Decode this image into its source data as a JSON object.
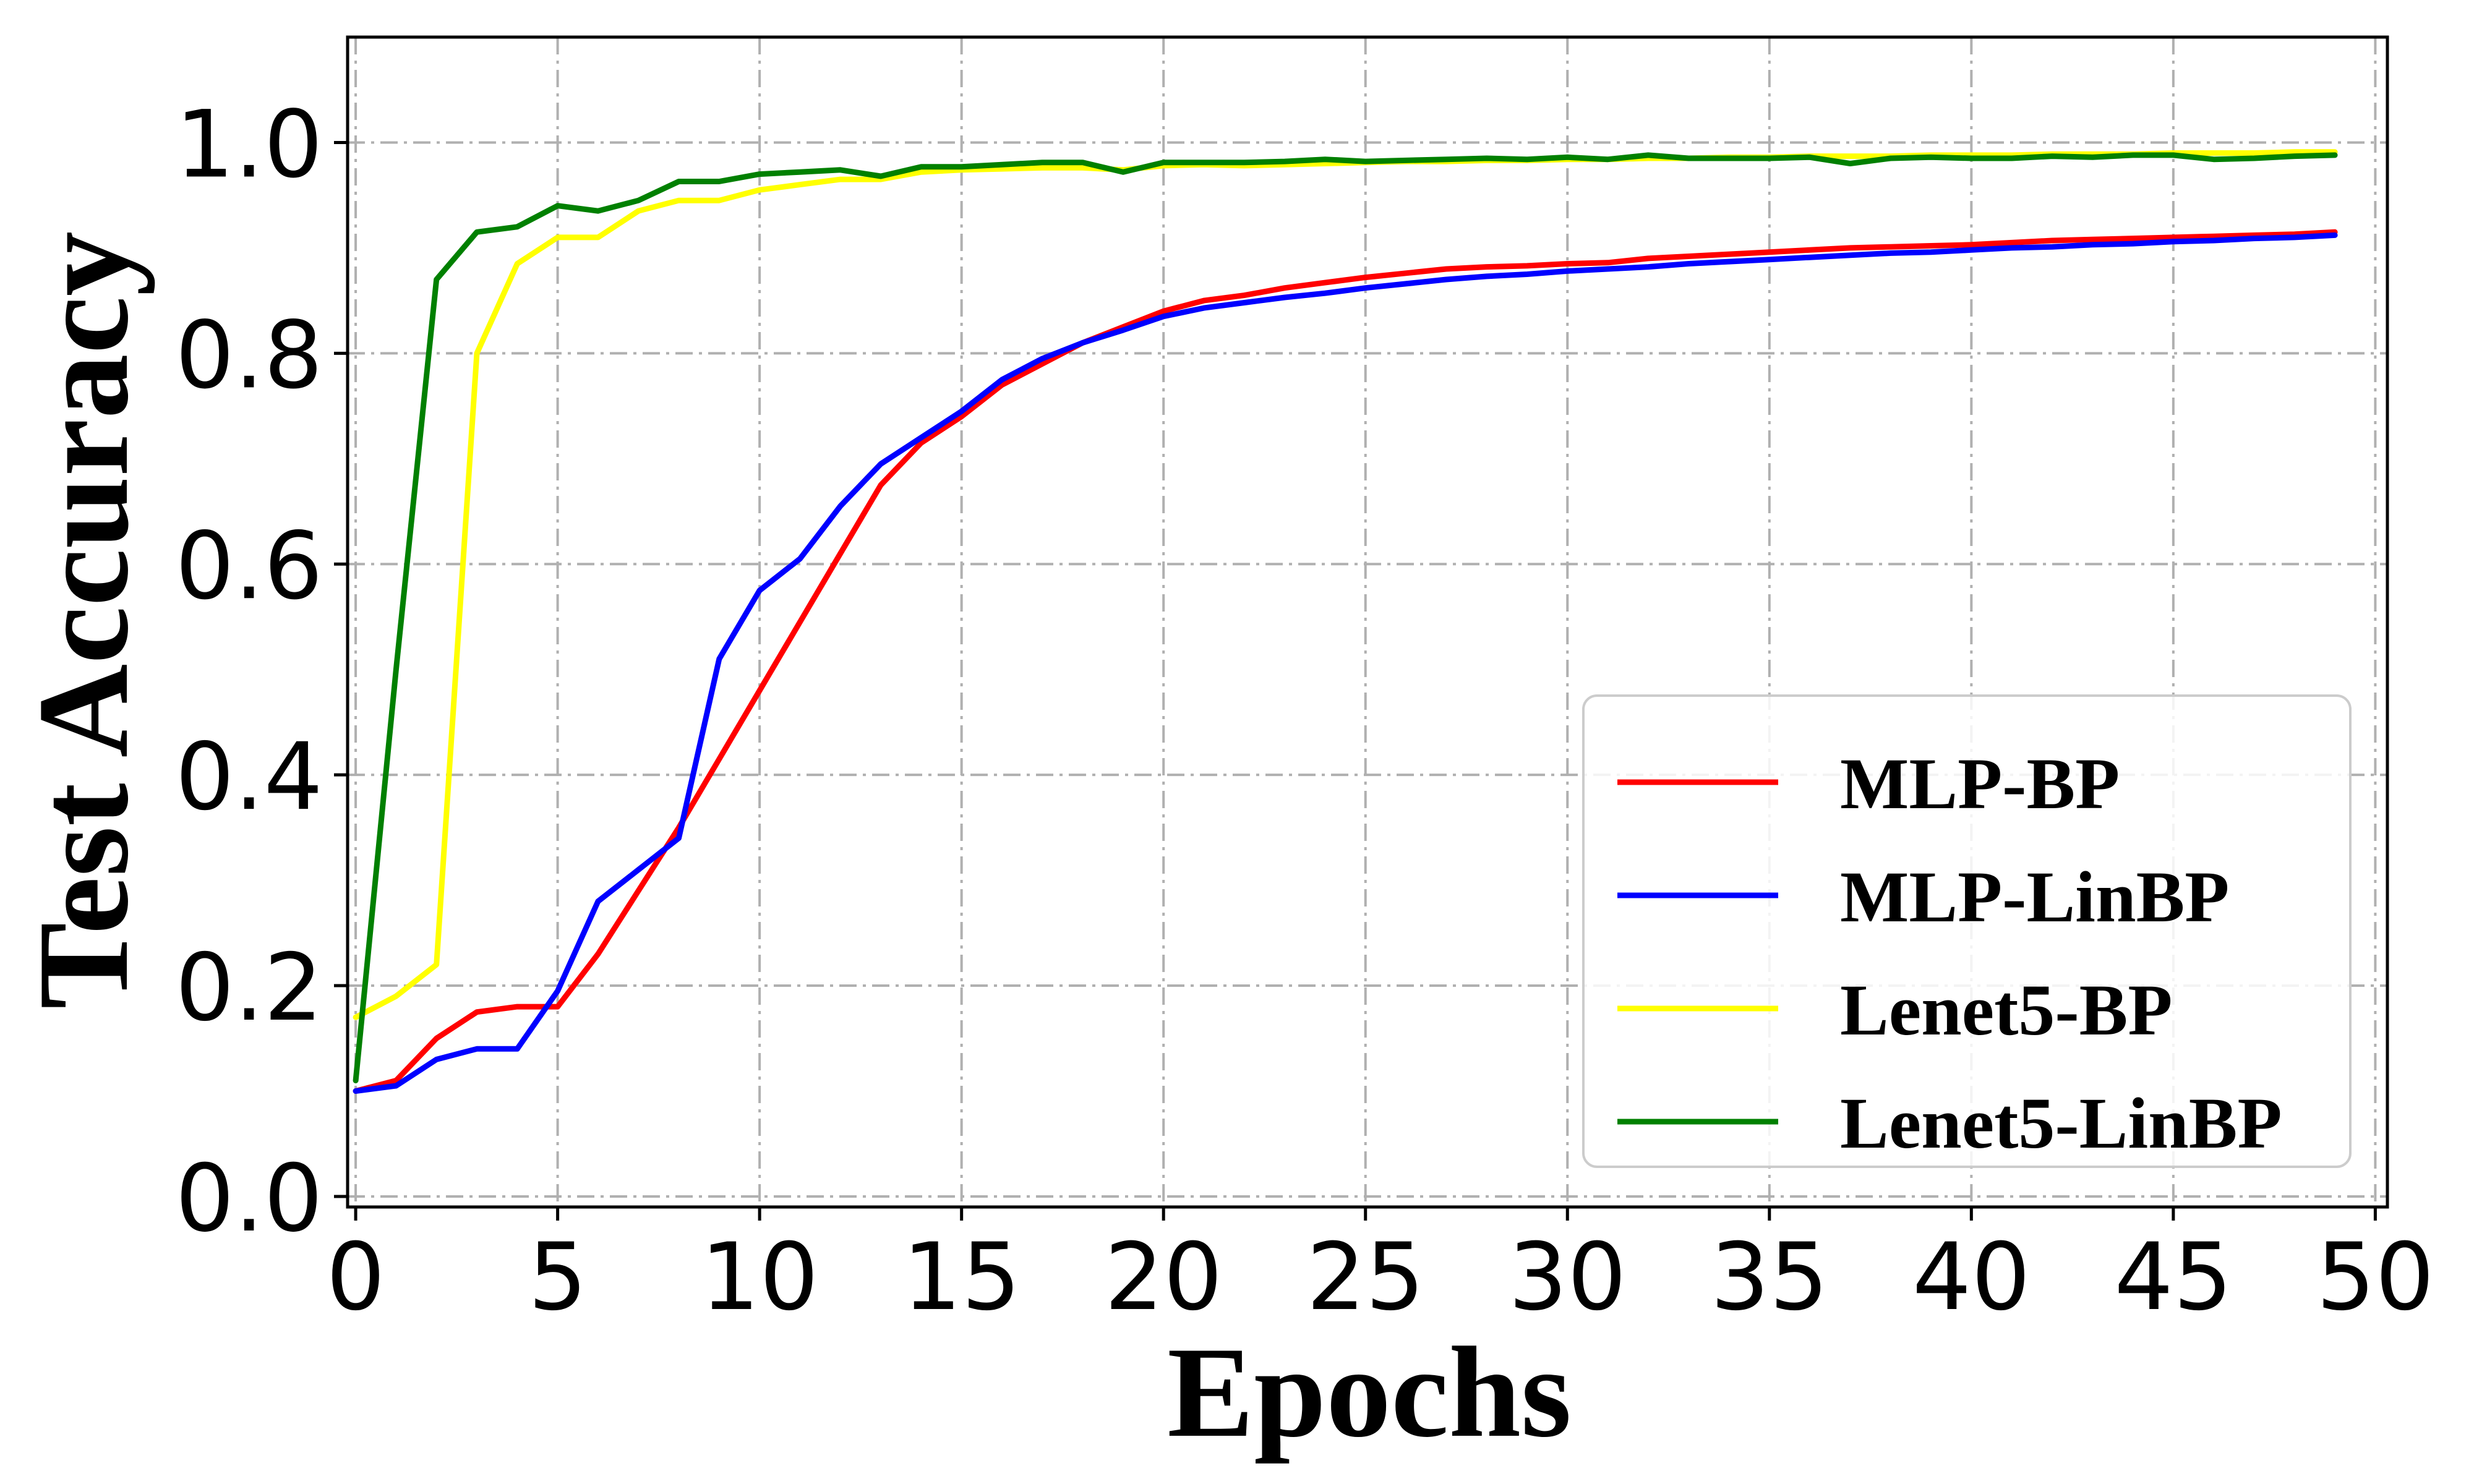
{
  "chart_data": {
    "type": "line",
    "title": "",
    "xlabel": "Epochs",
    "ylabel": "Test Accuracy",
    "xlim": [
      -0.2,
      50.3
    ],
    "ylim": [
      -0.01,
      1.1
    ],
    "xticks": [
      "0",
      "5",
      "10",
      "15",
      "20",
      "25",
      "30",
      "35",
      "40",
      "45",
      "50"
    ],
    "yticks": [
      "0.0",
      "0.2",
      "0.4",
      "0.6",
      "0.8",
      "1.0"
    ],
    "grid": true,
    "legend_position": "lower-right",
    "x": [
      0,
      1,
      2,
      3,
      4,
      5,
      6,
      7,
      8,
      9,
      10,
      11,
      12,
      13,
      14,
      15,
      16,
      17,
      18,
      19,
      20,
      21,
      22,
      23,
      24,
      25,
      26,
      27,
      28,
      29,
      30,
      31,
      32,
      33,
      34,
      35,
      36,
      37,
      38,
      39,
      40,
      41,
      42,
      43,
      44,
      45,
      46,
      47,
      48,
      49
    ],
    "series": [
      {
        "name": "MLP-BP",
        "color": "#ff0000",
        "values": [
          0.1,
          0.11,
          0.15,
          0.175,
          0.18,
          0.18,
          0.23,
          0.29,
          0.35,
          0.415,
          0.48,
          0.545,
          0.61,
          0.675,
          0.715,
          0.74,
          0.77,
          0.79,
          0.81,
          0.825,
          0.84,
          0.85,
          0.855,
          0.862,
          0.867,
          0.872,
          0.876,
          0.88,
          0.882,
          0.883,
          0.885,
          0.886,
          0.89,
          0.892,
          0.894,
          0.896,
          0.898,
          0.9,
          0.901,
          0.902,
          0.903,
          0.905,
          0.907,
          0.908,
          0.909,
          0.91,
          0.911,
          0.912,
          0.913,
          0.915
        ]
      },
      {
        "name": "MLP-LinBP",
        "color": "#0000ff",
        "values": [
          0.1,
          0.105,
          0.13,
          0.14,
          0.14,
          0.195,
          0.28,
          0.31,
          0.34,
          0.51,
          0.575,
          0.605,
          0.655,
          0.695,
          0.72,
          0.745,
          0.775,
          0.795,
          0.81,
          0.822,
          0.835,
          0.843,
          0.848,
          0.853,
          0.857,
          0.862,
          0.866,
          0.87,
          0.873,
          0.875,
          0.878,
          0.88,
          0.882,
          0.885,
          0.887,
          0.889,
          0.891,
          0.893,
          0.895,
          0.896,
          0.898,
          0.9,
          0.901,
          0.903,
          0.904,
          0.906,
          0.907,
          0.909,
          0.91,
          0.912
        ]
      },
      {
        "name": "Lenet5-BP",
        "color": "#ffff00",
        "values": [
          0.17,
          0.19,
          0.22,
          0.8,
          0.885,
          0.91,
          0.91,
          0.935,
          0.945,
          0.945,
          0.955,
          0.96,
          0.965,
          0.965,
          0.972,
          0.974,
          0.975,
          0.976,
          0.976,
          0.974,
          0.978,
          0.979,
          0.978,
          0.979,
          0.98,
          0.981,
          0.982,
          0.982,
          0.983,
          0.983,
          0.984,
          0.984,
          0.985,
          0.985,
          0.986,
          0.986,
          0.987,
          0.987,
          0.987,
          0.988,
          0.988,
          0.988,
          0.989,
          0.989,
          0.989,
          0.99,
          0.99,
          0.99,
          0.991,
          0.991
        ]
      },
      {
        "name": "Lenet5-LinBP",
        "color": "#008000",
        "values": [
          0.11,
          0.5,
          0.87,
          0.915,
          0.92,
          0.94,
          0.935,
          0.945,
          0.963,
          0.963,
          0.97,
          0.972,
          0.974,
          0.968,
          0.977,
          0.977,
          0.979,
          0.981,
          0.981,
          0.972,
          0.981,
          0.981,
          0.981,
          0.982,
          0.984,
          0.982,
          0.983,
          0.984,
          0.985,
          0.984,
          0.986,
          0.984,
          0.988,
          0.985,
          0.985,
          0.985,
          0.986,
          0.98,
          0.985,
          0.986,
          0.985,
          0.985,
          0.987,
          0.986,
          0.988,
          0.988,
          0.984,
          0.985,
          0.987,
          0.988
        ]
      }
    ]
  }
}
